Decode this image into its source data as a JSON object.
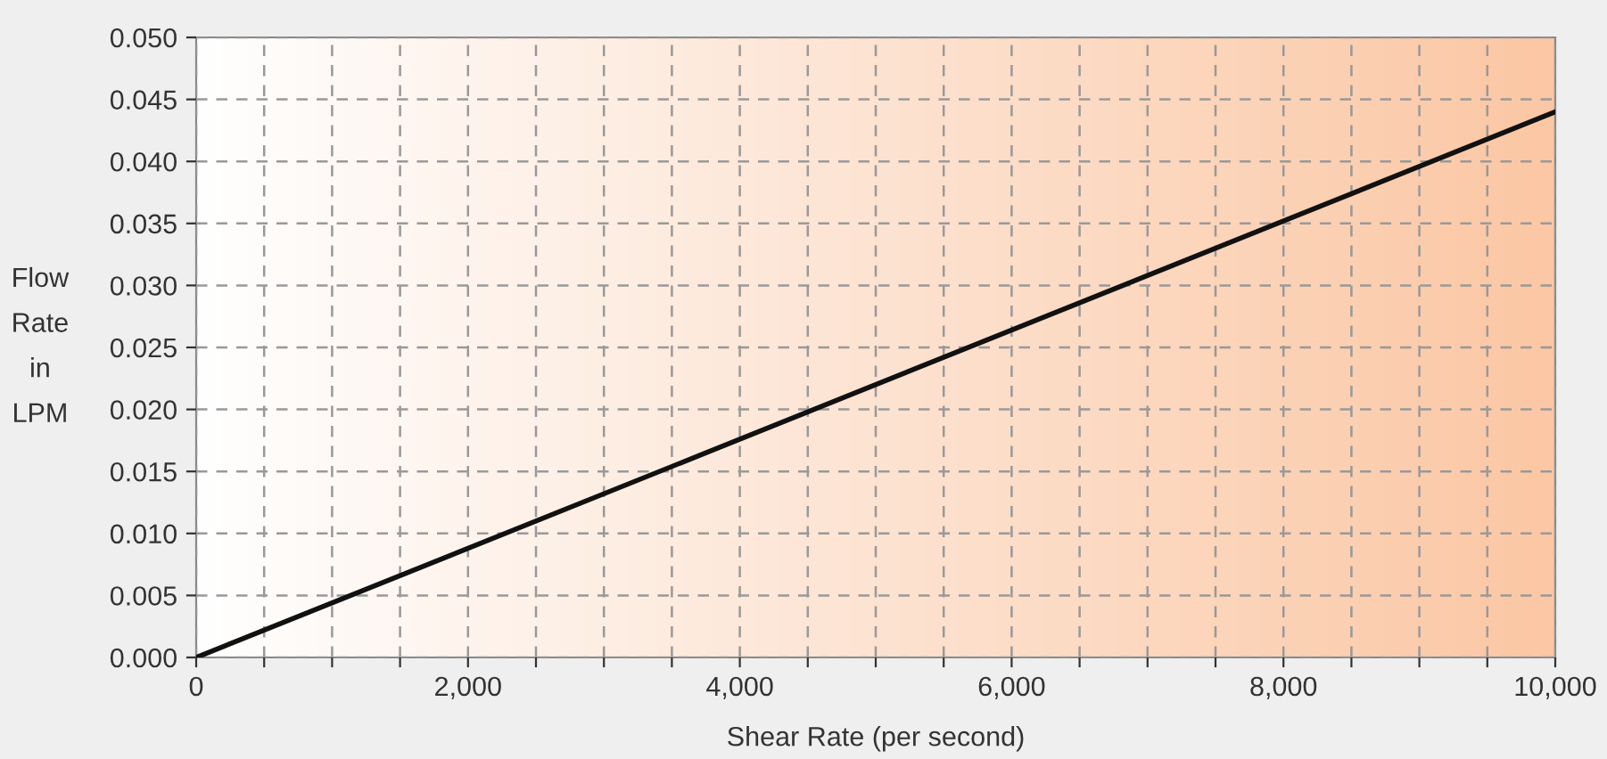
{
  "chart_data": {
    "type": "line",
    "xlabel": "Shear Rate (per second)",
    "ylabel": "Flow\nRate\nin\nLPM",
    "x": [
      0,
      10000
    ],
    "series": [
      {
        "color": "#111111",
        "values": [
          0,
          0.044
        ]
      }
    ],
    "xlim": [
      0,
      10000
    ],
    "ylim": [
      0,
      0.05
    ],
    "xticks": [
      {
        "value": 0,
        "label": "0"
      },
      {
        "value": 500,
        "label": null
      },
      {
        "value": 1000,
        "label": null
      },
      {
        "value": 1500,
        "label": null
      },
      {
        "value": 2000,
        "label": "2,000"
      },
      {
        "value": 2500,
        "label": null
      },
      {
        "value": 3000,
        "label": null
      },
      {
        "value": 3500,
        "label": null
      },
      {
        "value": 4000,
        "label": "4,000"
      },
      {
        "value": 4500,
        "label": null
      },
      {
        "value": 5000,
        "label": null
      },
      {
        "value": 5500,
        "label": null
      },
      {
        "value": 6000,
        "label": "6,000"
      },
      {
        "value": 6500,
        "label": null
      },
      {
        "value": 7000,
        "label": null
      },
      {
        "value": 7500,
        "label": null
      },
      {
        "value": 8000,
        "label": "8,000"
      },
      {
        "value": 8500,
        "label": null
      },
      {
        "value": 9000,
        "label": null
      },
      {
        "value": 9500,
        "label": null
      },
      {
        "value": 10000,
        "label": "10,000"
      }
    ],
    "yticks": [
      {
        "value": 0,
        "label": "0.000"
      },
      {
        "value": 0.005,
        "label": "0.005"
      },
      {
        "value": 0.01,
        "label": "0.010"
      },
      {
        "value": 0.015,
        "label": "0.015"
      },
      {
        "value": 0.02,
        "label": "0.020"
      },
      {
        "value": 0.025,
        "label": "0.025"
      },
      {
        "value": 0.03,
        "label": "0.030"
      },
      {
        "value": 0.035,
        "label": "0.035"
      },
      {
        "value": 0.04,
        "label": "0.040"
      },
      {
        "value": 0.045,
        "label": "0.045"
      },
      {
        "value": 0.05,
        "label": "0.050"
      }
    ],
    "grid": true,
    "line_style": "solid",
    "marker": "none"
  }
}
